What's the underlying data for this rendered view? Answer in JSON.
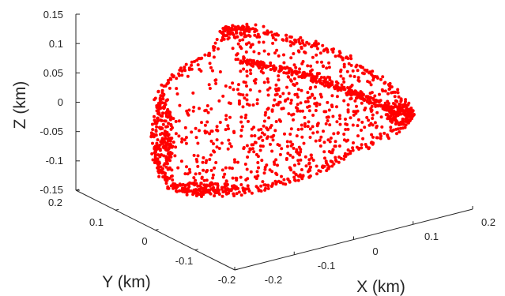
{
  "chart_data": {
    "type": "scatter",
    "projection": "3d",
    "title": "",
    "xlabel": "X (km)",
    "ylabel": "Y (km)",
    "zlabel": "Z (km)",
    "xlim": [
      -0.2,
      0.2
    ],
    "ylim": [
      -0.2,
      0.2
    ],
    "zlim": [
      -0.15,
      0.15
    ],
    "xticks": [
      "-0.2",
      "-0.1",
      "0",
      "0.1",
      "0.2"
    ],
    "yticks": [
      "-0.2",
      "-0.1",
      "0",
      "0.1",
      "0.2"
    ],
    "zticks": [
      "-0.15",
      "-0.1",
      "-0.05",
      "0",
      "0.05",
      "0.1",
      "0.15"
    ],
    "grid": false,
    "marker_color": "#ff0000",
    "point_count_estimate": 1400
  }
}
